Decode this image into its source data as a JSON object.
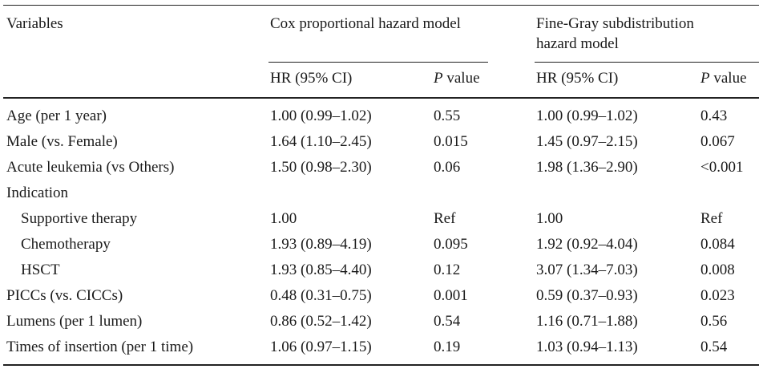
{
  "table": {
    "header": {
      "variables": "Variables",
      "cox_model": "Cox proportional hazard model",
      "fine_gray_line1": "Fine-Gray subdistribution",
      "fine_gray_line2": "hazard model",
      "hr_ci": "HR (95% CI)",
      "p_letter": "P",
      "p_value_word": " value"
    },
    "rows": [
      {
        "label": "Age (per 1 year)",
        "cox_hr": "1.00 (0.99–1.02)",
        "cox_p": "0.55",
        "fg_hr": "1.00 (0.99–1.02)",
        "fg_p": "0.43"
      },
      {
        "label": "Male (vs. Female)",
        "cox_hr": "1.64 (1.10–2.45)",
        "cox_p": "0.015",
        "fg_hr": "1.45 (0.97–2.15)",
        "fg_p": "0.067"
      },
      {
        "label": "Acute leukemia (vs Others)",
        "cox_hr": "1.50 (0.98–2.30)",
        "cox_p": "0.06",
        "fg_hr": "1.98 (1.36–2.90)",
        "fg_p": "<0.001"
      },
      {
        "label": "Indication",
        "cox_hr": "",
        "cox_p": "",
        "fg_hr": "",
        "fg_p": ""
      },
      {
        "label": "Supportive therapy",
        "cox_hr": "1.00",
        "cox_p": "Ref",
        "fg_hr": "1.00",
        "fg_p": "Ref"
      },
      {
        "label": "Chemotherapy",
        "cox_hr": "1.93 (0.89–4.19)",
        "cox_p": "0.095",
        "fg_hr": "1.92 (0.92–4.04)",
        "fg_p": "0.084"
      },
      {
        "label": "HSCT",
        "cox_hr": "1.93 (0.85–4.40)",
        "cox_p": "0.12",
        "fg_hr": "3.07 (1.34–7.03)",
        "fg_p": "0.008"
      },
      {
        "label": "PICCs (vs. CICCs)",
        "cox_hr": "0.48 (0.31–0.75)",
        "cox_p": "0.001",
        "fg_hr": "0.59 (0.37–0.93)",
        "fg_p": "0.023"
      },
      {
        "label": "Lumens (per 1 lumen)",
        "cox_hr": "0.86 (0.52–1.42)",
        "cox_p": "0.54",
        "fg_hr": "1.16 (0.71–1.88)",
        "fg_p": "0.56"
      },
      {
        "label": "Times of insertion (per 1 time)",
        "cox_hr": "1.06 (0.97–1.15)",
        "cox_p": "0.19",
        "fg_hr": "1.03 (0.94–1.13)",
        "fg_p": "0.54"
      }
    ]
  }
}
